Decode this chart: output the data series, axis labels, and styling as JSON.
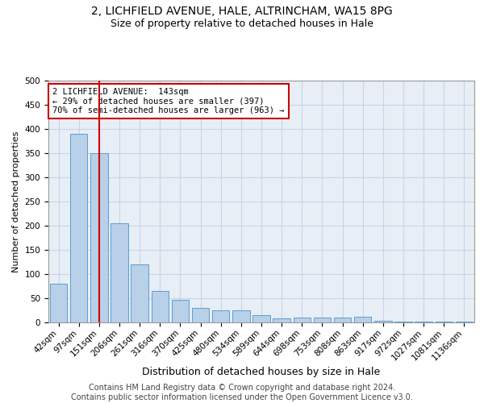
{
  "title_line1": "2, LICHFIELD AVENUE, HALE, ALTRINCHAM, WA15 8PG",
  "title_line2": "Size of property relative to detached houses in Hale",
  "xlabel": "Distribution of detached houses by size in Hale",
  "ylabel": "Number of detached properties",
  "categories": [
    "42sqm",
    "97sqm",
    "151sqm",
    "206sqm",
    "261sqm",
    "316sqm",
    "370sqm",
    "425sqm",
    "480sqm",
    "534sqm",
    "589sqm",
    "644sqm",
    "698sqm",
    "753sqm",
    "808sqm",
    "863sqm",
    "917sqm",
    "972sqm",
    "1027sqm",
    "1081sqm",
    "1136sqm"
  ],
  "values": [
    80,
    390,
    350,
    205,
    120,
    65,
    47,
    30,
    25,
    25,
    15,
    8,
    10,
    10,
    10,
    12,
    3,
    1,
    1,
    1,
    1
  ],
  "bar_color": "#b8d0e8",
  "bar_edge_color": "#5a9fd4",
  "vline_x_index": 2,
  "vline_color": "#cc0000",
  "annotation_text": "2 LICHFIELD AVENUE:  143sqm\n← 29% of detached houses are smaller (397)\n70% of semi-detached houses are larger (963) →",
  "annotation_box_color": "#ffffff",
  "annotation_box_edge_color": "#cc0000",
  "annotation_fontsize": 7.5,
  "ylim": [
    0,
    500
  ],
  "yticks": [
    0,
    50,
    100,
    150,
    200,
    250,
    300,
    350,
    400,
    450,
    500
  ],
  "grid_color": "#c8d4e4",
  "background_color": "#e8eef6",
  "footer_text": "Contains HM Land Registry data © Crown copyright and database right 2024.\nContains public sector information licensed under the Open Government Licence v3.0.",
  "title_fontsize": 10,
  "subtitle_fontsize": 9,
  "xlabel_fontsize": 9,
  "ylabel_fontsize": 8,
  "tick_fontsize": 7.5,
  "footer_fontsize": 7
}
